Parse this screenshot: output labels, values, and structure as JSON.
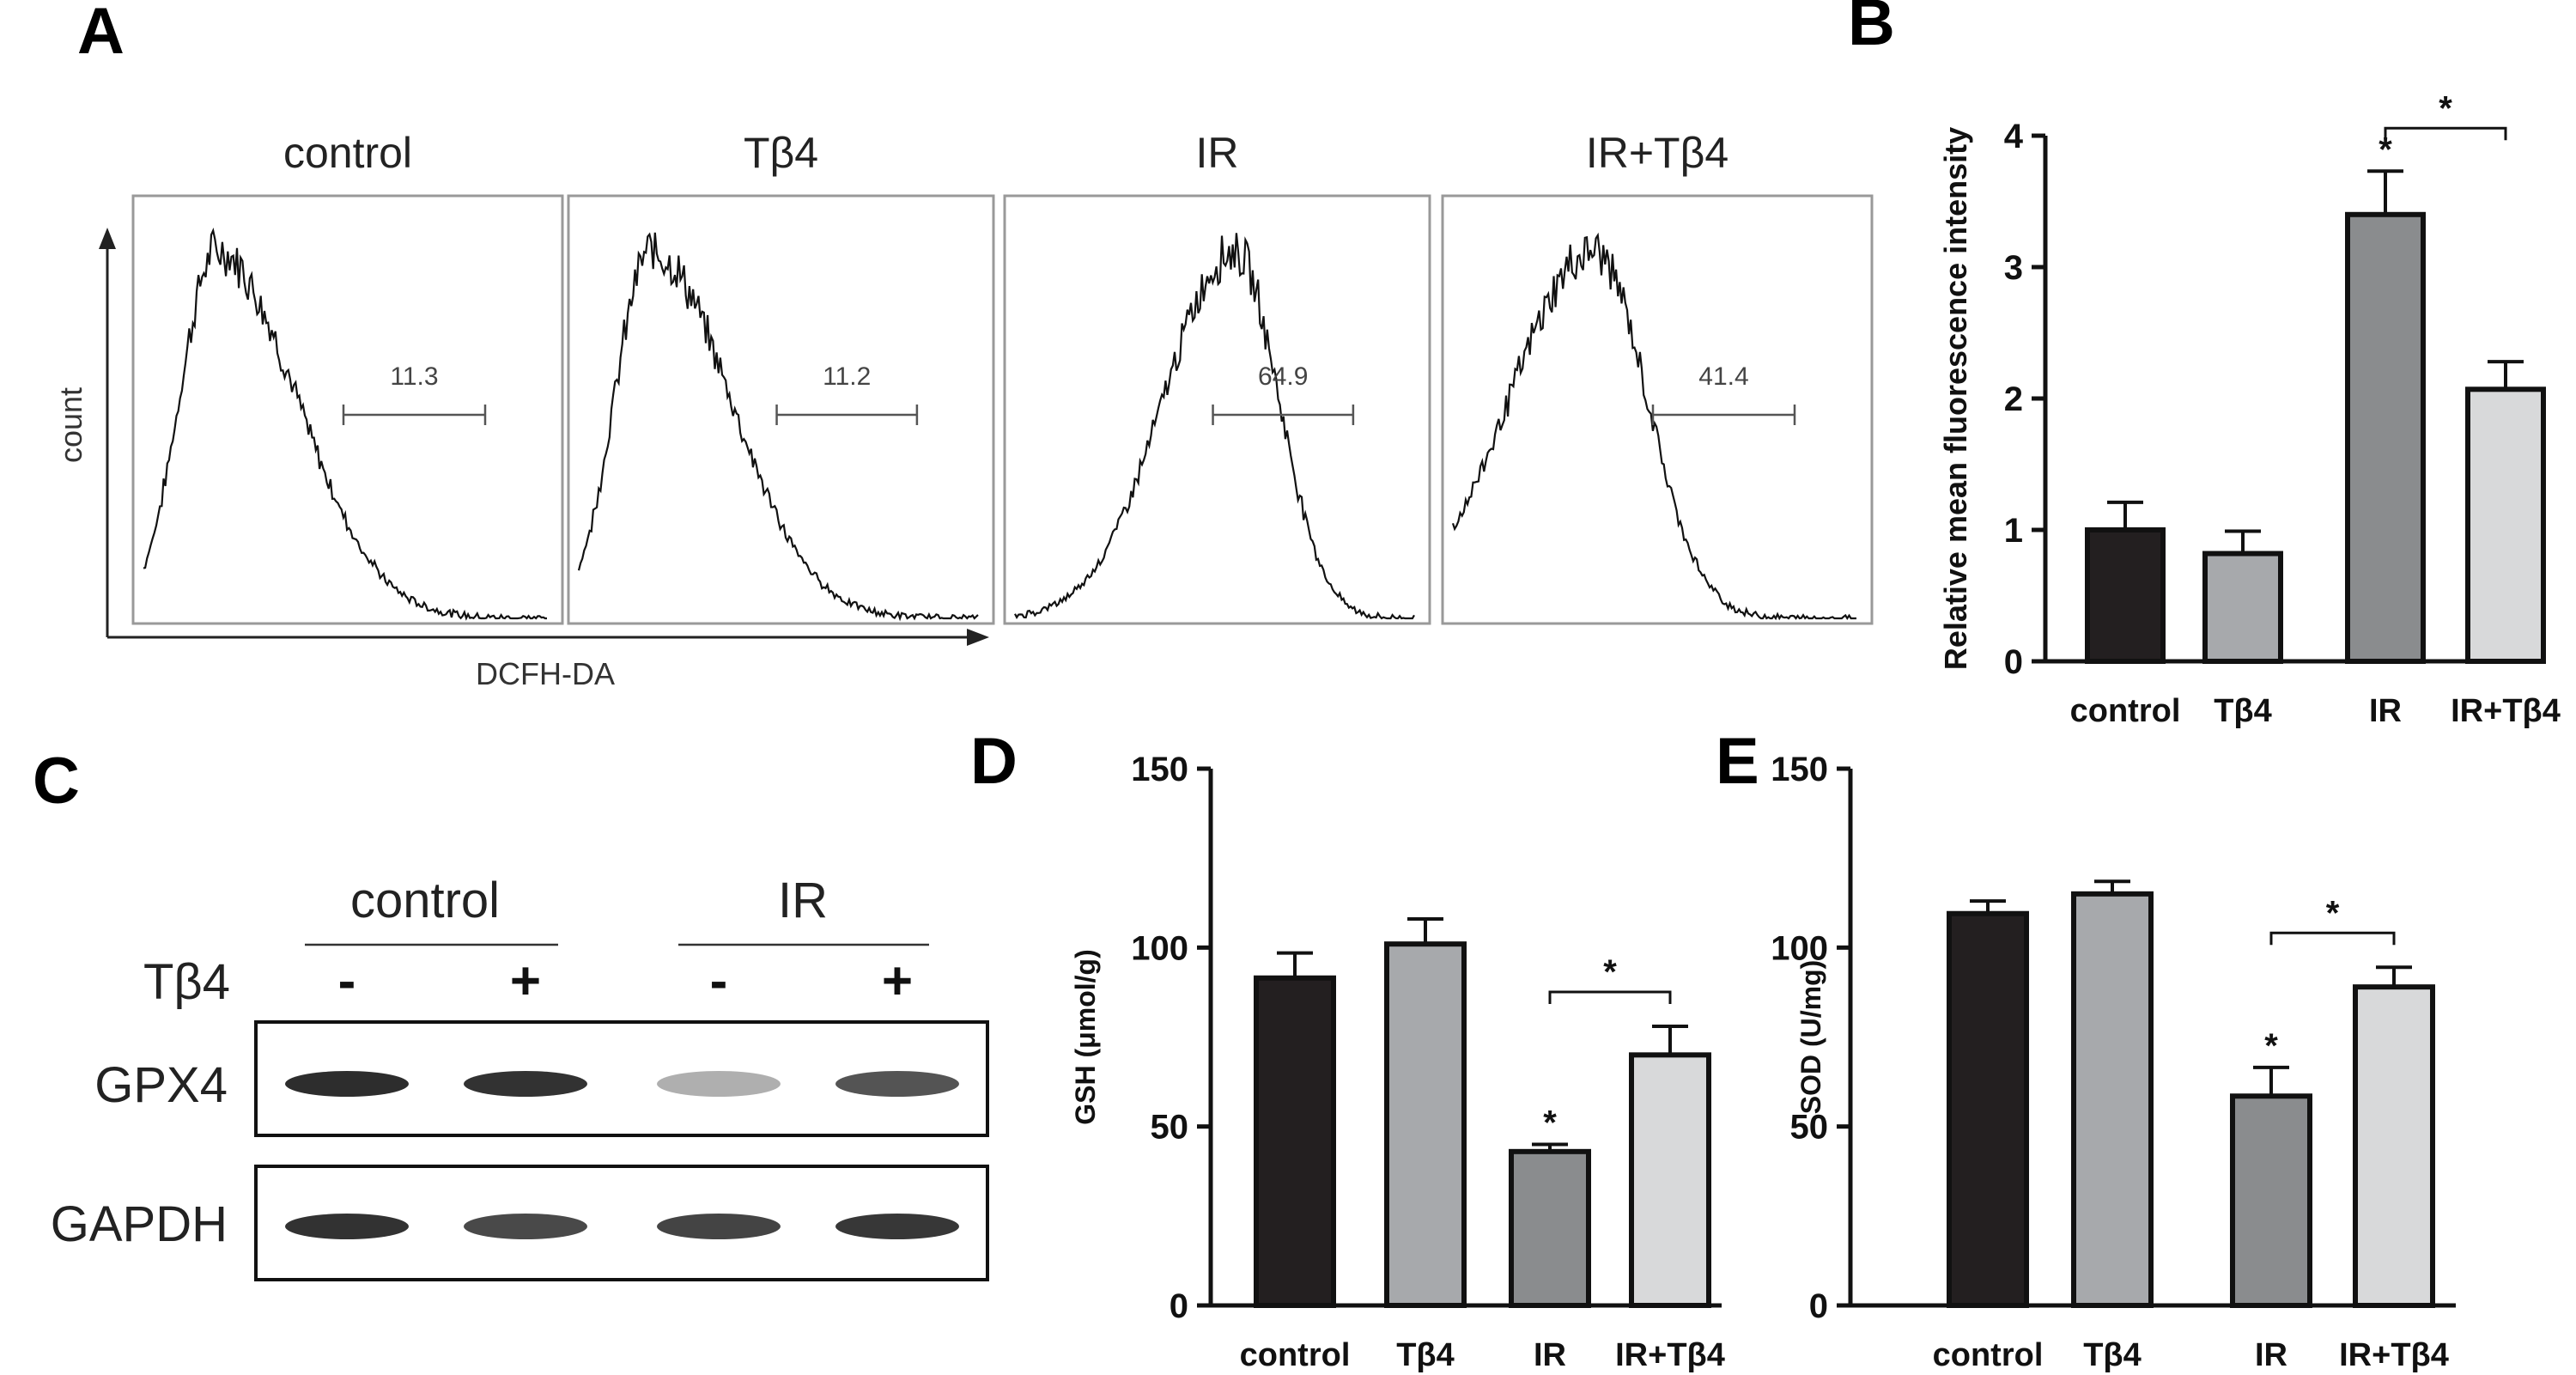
{
  "panel_letters": {
    "a": "A",
    "b": "B",
    "c": "C",
    "d": "D",
    "e": "E"
  },
  "flow": {
    "y_label": "count",
    "x_label": "DCFH-DA",
    "panels": [
      {
        "title": "control",
        "gate_value": "11.3"
      },
      {
        "title": "Tβ4",
        "gate_value": "11.2"
      },
      {
        "title": "IR",
        "gate_value": "64.9"
      },
      {
        "title": "IR+Tβ4",
        "gate_value": "41.4"
      }
    ]
  },
  "western": {
    "group_labels": [
      "control",
      "IR"
    ],
    "treatment_label": "Tβ4",
    "treatment_signs": [
      "-",
      "+",
      "-",
      "+"
    ],
    "rows": [
      {
        "label": "GPX4",
        "intensity": [
          0.92,
          0.9,
          0.35,
          0.75
        ]
      },
      {
        "label": "GAPDH",
        "intensity": [
          0.9,
          0.8,
          0.82,
          0.88
        ]
      }
    ]
  },
  "chart_data": [
    {
      "panel": "B",
      "type": "bar",
      "ylabel": "Relative mean  fluorescence intensity",
      "categories": [
        "control",
        "Tβ4",
        "IR",
        "IR+Tβ4"
      ],
      "values": [
        1.0,
        0.82,
        3.4,
        2.07
      ],
      "errors": [
        0.21,
        0.17,
        0.33,
        0.21
      ],
      "ylim": [
        0,
        4
      ],
      "yticks": [
        "0",
        "1",
        "2",
        "3",
        "4"
      ],
      "bar_colors": [
        "#231f20",
        "#a7a9ac",
        "#8a8c8e",
        "#d8d9da"
      ],
      "significance": {
        "single": [
          {
            "index": 2,
            "label": "*"
          }
        ],
        "bracket": {
          "from": 2,
          "to": 3,
          "label": "*"
        }
      }
    },
    {
      "panel": "D",
      "type": "bar",
      "ylabel": "GSH (μmol/g)",
      "categories": [
        "control",
        "Tβ4",
        "IR",
        "IR+Tβ4"
      ],
      "values": [
        91.5,
        101,
        43,
        70
      ],
      "errors": [
        7,
        7,
        2,
        8
      ],
      "ylim": [
        0,
        150
      ],
      "yticks": [
        "0",
        "50",
        "100",
        "150"
      ],
      "bar_colors": [
        "#231f20",
        "#a7a9ac",
        "#8a8c8e",
        "#d8d9da"
      ],
      "significance": {
        "single": [
          {
            "index": 2,
            "label": "*"
          }
        ],
        "bracket": {
          "from": 2,
          "to": 3,
          "label": "*"
        }
      }
    },
    {
      "panel": "E",
      "type": "bar",
      "ylabel": "SOD (U/mg)",
      "categories": [
        "control",
        "Tβ4",
        "IR",
        "IR+Tβ4"
      ],
      "values": [
        109.5,
        115,
        58.5,
        89
      ],
      "errors": [
        3.5,
        3.5,
        8,
        5.5
      ],
      "ylim": [
        0,
        150
      ],
      "yticks": [
        "0",
        "50",
        "100",
        "150"
      ],
      "bar_colors": [
        "#231f20",
        "#a7a9ac",
        "#8a8c8e",
        "#d8d9da"
      ],
      "significance": {
        "single": [
          {
            "index": 2,
            "label": "*"
          }
        ],
        "bracket": {
          "from": 2,
          "to": 3,
          "label": "*"
        }
      }
    }
  ]
}
